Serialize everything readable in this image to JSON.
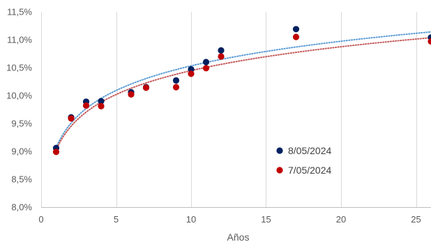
{
  "chart_data": {
    "type": "scatter",
    "title": "",
    "xlabel": "Años",
    "ylabel": "",
    "xlim": [
      0,
      26
    ],
    "ylim": [
      8.0,
      11.5
    ],
    "x_ticks": [
      0,
      5,
      10,
      15,
      20,
      25
    ],
    "x_tick_labels": [
      "0",
      "5",
      "10",
      "15",
      "20",
      "25"
    ],
    "y_ticks": [
      8.0,
      8.5,
      9.0,
      9.5,
      10.0,
      10.5,
      11.0,
      11.5
    ],
    "y_tick_labels": [
      "8,0%",
      "8,5%",
      "9,0%",
      "9,5%",
      "10,0%",
      "10,5%",
      "11,0%",
      "11,5%"
    ],
    "grid": "vertical",
    "legend_position": "inside-bottom-right",
    "trendline": "logarithmic, dotted",
    "series": [
      {
        "name": "8/05/2024",
        "color": "#002060",
        "trend_color": "#5B9BD5",
        "x": [
          1,
          2,
          3,
          4,
          6,
          7,
          9,
          10,
          11,
          12,
          17,
          26
        ],
        "y": [
          9.06,
          9.61,
          9.89,
          9.9,
          10.06,
          10.15,
          10.27,
          10.47,
          10.6,
          10.81,
          11.19,
          11.04
        ]
      },
      {
        "name": "7/05/2024",
        "color": "#C00000",
        "trend_color": "#C55A5A",
        "x": [
          1,
          2,
          3,
          4,
          6,
          7,
          9,
          10,
          11,
          12,
          17,
          26
        ],
        "y": [
          8.99,
          9.59,
          9.82,
          9.81,
          10.02,
          10.14,
          10.15,
          10.39,
          10.49,
          10.7,
          11.05,
          10.97
        ]
      }
    ]
  }
}
